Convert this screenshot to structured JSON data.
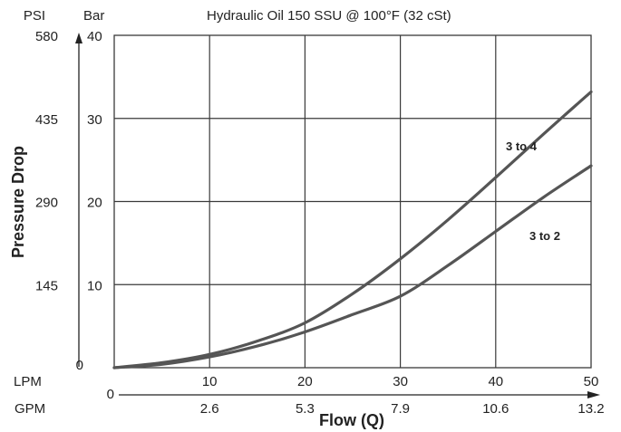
{
  "chart_data": {
    "type": "line",
    "title": "Hydraulic Oil 150 SSU @ 100°F (32 cSt)",
    "xlabel": "Flow (Q)",
    "ylabel": "Pressure Drop",
    "left_axis_psi_label": "PSI",
    "left_axis_bar_label": "Bar",
    "x_unit_lpm": "LPM",
    "x_unit_gpm": "GPM",
    "x_zero_label": "0",
    "psi_zero_label": "0",
    "xlim_lpm": [
      0,
      50
    ],
    "ylim_bar": [
      0,
      40
    ],
    "grid": true,
    "x_ticks_lpm": [
      "10",
      "20",
      "30",
      "40",
      "50"
    ],
    "x_ticks_gpm": [
      "2.6",
      "5.3",
      "7.9",
      "10.6",
      "13.2"
    ],
    "y_ticks_bar": [
      "10",
      "20",
      "30",
      "40"
    ],
    "y_ticks_psi": [
      "145",
      "290",
      "435",
      "580"
    ],
    "series": [
      {
        "name": "3 to 4",
        "x": [
          0,
          5,
          10,
          15,
          20,
          25,
          30,
          35,
          40,
          45,
          50
        ],
        "y": [
          0,
          0.6,
          1.6,
          3.2,
          5.4,
          8.9,
          13.1,
          17.8,
          22.9,
          28.1,
          33.2
        ]
      },
      {
        "name": "3 to 2",
        "x": [
          0,
          5,
          10,
          15,
          20,
          25,
          30,
          35,
          40,
          45,
          50
        ],
        "y": [
          0,
          0.4,
          1.3,
          2.6,
          4.3,
          6.4,
          8.6,
          12.3,
          16.4,
          20.5,
          24.3
        ]
      }
    ],
    "line_color": "#555555"
  }
}
